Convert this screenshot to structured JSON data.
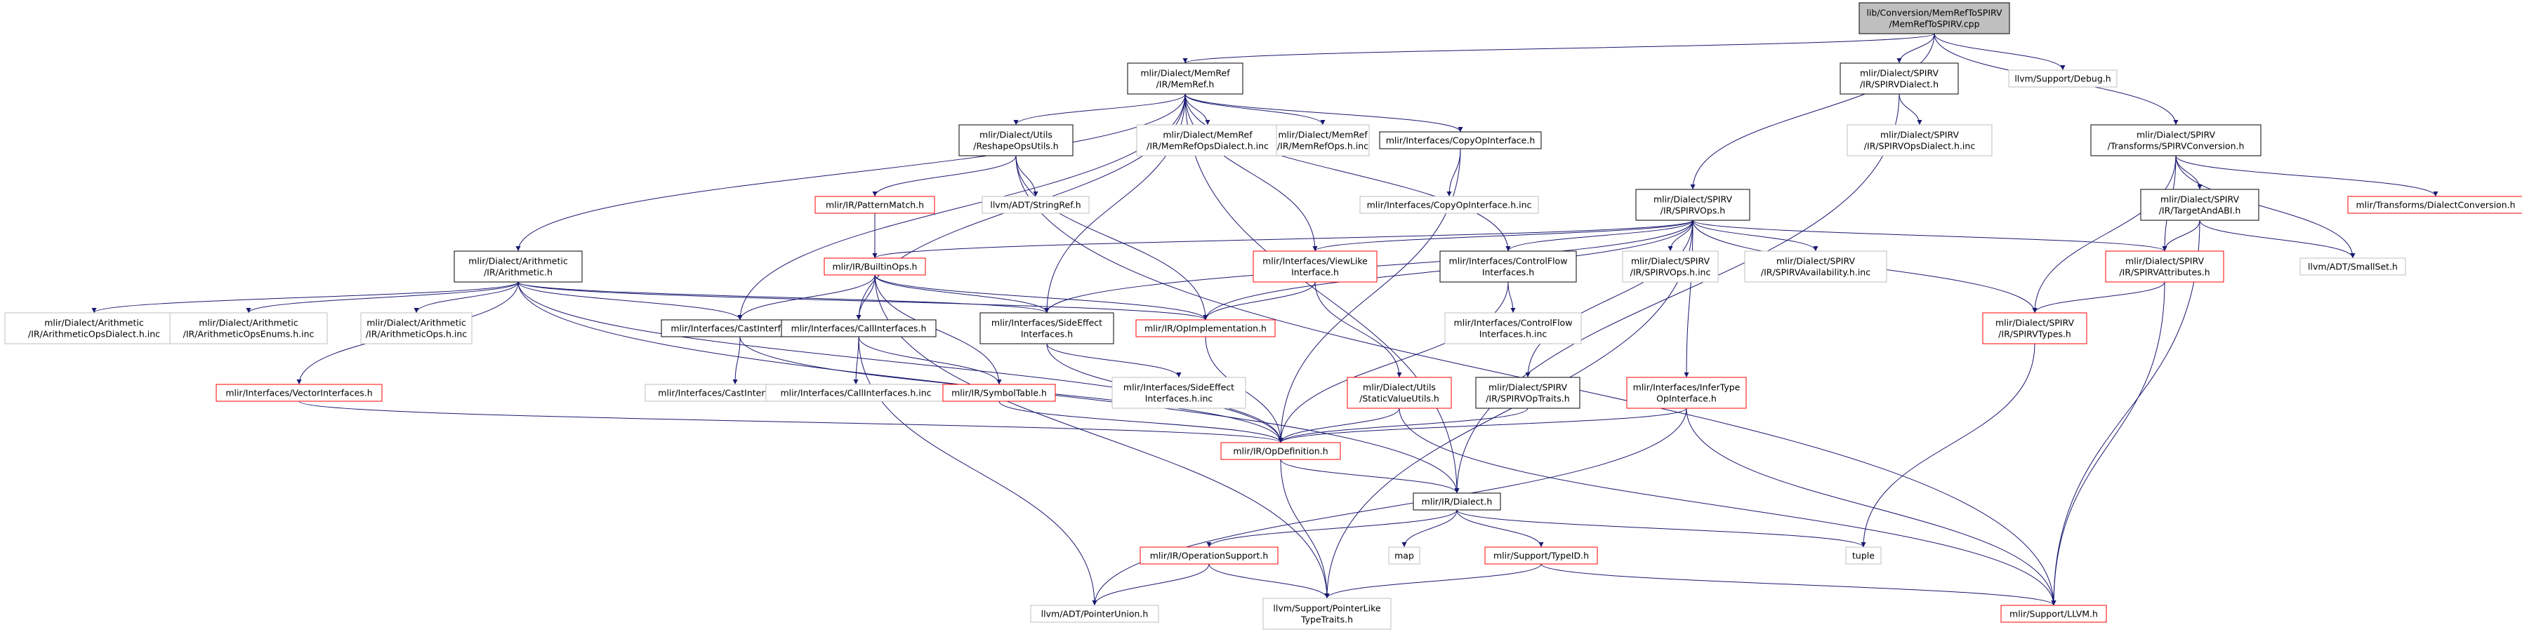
{
  "colors": {
    "edge": "#191970",
    "border_black": "#000000",
    "border_red": "#ff0000",
    "border_gray": "#bfbfbf",
    "root_fill": "#bfbfbf",
    "text": "#000000"
  },
  "nodes": [
    {
      "id": "root",
      "lines": [
        "lib/Conversion/MemRefToSPIRV",
        "/MemRefToSPIRV.cpp"
      ],
      "style": "root"
    },
    {
      "id": "memref",
      "lines": [
        "mlir/Dialect/MemRef",
        "/IR/MemRef.h"
      ],
      "style": "black"
    },
    {
      "id": "spirvdialect",
      "lines": [
        "mlir/Dialect/SPIRV",
        "/IR/SPIRVDialect.h"
      ],
      "style": "black"
    },
    {
      "id": "debug",
      "lines": [
        "llvm/Support/Debug.h"
      ],
      "style": "gray"
    },
    {
      "id": "spirvconv",
      "lines": [
        "mlir/Dialect/SPIRV",
        "/Transforms/SPIRVConversion.h"
      ],
      "style": "black"
    },
    {
      "id": "reshapeops",
      "lines": [
        "mlir/Dialect/Utils",
        "/ReshapeOpsUtils.h"
      ],
      "style": "black"
    },
    {
      "id": "memrefopsdialect",
      "lines": [
        "mlir/Dialect/MemRef",
        "/IR/MemRefOpsDialect.h.inc"
      ],
      "style": "gray"
    },
    {
      "id": "memrefops",
      "lines": [
        "mlir/Dialect/MemRef",
        "/IR/MemRefOps.h.inc"
      ],
      "style": "gray"
    },
    {
      "id": "copyop",
      "lines": [
        "mlir/Interfaces/CopyOpInterface.h"
      ],
      "style": "black"
    },
    {
      "id": "spirvopsdialect",
      "lines": [
        "mlir/Dialect/SPIRV",
        "/IR/SPIRVOpsDialect.h.inc"
      ],
      "style": "gray"
    },
    {
      "id": "targetabi",
      "lines": [
        "mlir/Dialect/SPIRV",
        "/IR/TargetAndABI.h"
      ],
      "style": "black"
    },
    {
      "id": "dialectconv",
      "lines": [
        "mlir/Transforms/DialectConversion.h"
      ],
      "style": "red"
    },
    {
      "id": "patternmatch",
      "lines": [
        "mlir/IR/PatternMatch.h"
      ],
      "style": "red"
    },
    {
      "id": "stringref",
      "lines": [
        "llvm/ADT/StringRef.h"
      ],
      "style": "gray"
    },
    {
      "id": "copyopinc",
      "lines": [
        "mlir/Interfaces/CopyOpInterface.h.inc"
      ],
      "style": "gray"
    },
    {
      "id": "spirvops",
      "lines": [
        "mlir/Dialect/SPIRV",
        "/IR/SPIRVOps.h"
      ],
      "style": "black"
    },
    {
      "id": "arith",
      "lines": [
        "mlir/Dialect/Arithmetic",
        "/IR/Arithmetic.h"
      ],
      "style": "black"
    },
    {
      "id": "builtinops",
      "lines": [
        "mlir/IR/BuiltinOps.h"
      ],
      "style": "red"
    },
    {
      "id": "viewlike",
      "lines": [
        "mlir/Interfaces/ViewLike",
        "Interface.h"
      ],
      "style": "red"
    },
    {
      "id": "controlflow",
      "lines": [
        "mlir/Interfaces/ControlFlow",
        "Interfaces.h"
      ],
      "style": "black"
    },
    {
      "id": "spirvopsinc",
      "lines": [
        "mlir/Dialect/SPIRV",
        "/IR/SPIRVOps.h.inc"
      ],
      "style": "gray"
    },
    {
      "id": "spirvavail",
      "lines": [
        "mlir/Dialect/SPIRV",
        "/IR/SPIRVAvailability.h.inc"
      ],
      "style": "gray"
    },
    {
      "id": "spirvattrs",
      "lines": [
        "mlir/Dialect/SPIRV",
        "/IR/SPIRVAttributes.h"
      ],
      "style": "red"
    },
    {
      "id": "smallset",
      "lines": [
        "llvm/ADT/SmallSet.h"
      ],
      "style": "gray"
    },
    {
      "id": "arithdialect",
      "lines": [
        "mlir/Dialect/Arithmetic",
        "/IR/ArithmeticOpsDialect.h.inc"
      ],
      "style": "gray"
    },
    {
      "id": "arithenums",
      "lines": [
        "mlir/Dialect/Arithmetic",
        "/IR/ArithmeticOpsEnums.h.inc"
      ],
      "style": "gray"
    },
    {
      "id": "arithops",
      "lines": [
        "mlir/Dialect/Arithmetic",
        "/IR/ArithmeticOps.h.inc"
      ],
      "style": "gray"
    },
    {
      "id": "castif",
      "lines": [
        "mlir/Interfaces/CastInterfaces.h"
      ],
      "style": "black"
    },
    {
      "id": "callif",
      "lines": [
        "mlir/Interfaces/CallInterfaces.h"
      ],
      "style": "black"
    },
    {
      "id": "sideeffect",
      "lines": [
        "mlir/Interfaces/SideEffect",
        "Interfaces.h"
      ],
      "style": "black"
    },
    {
      "id": "opimpl",
      "lines": [
        "mlir/IR/OpImplementation.h"
      ],
      "style": "red"
    },
    {
      "id": "controlflowinc",
      "lines": [
        "mlir/Interfaces/ControlFlow",
        "Interfaces.h.inc"
      ],
      "style": "gray"
    },
    {
      "id": "spirvtypes",
      "lines": [
        "mlir/Dialect/SPIRV",
        "/IR/SPIRVTypes.h"
      ],
      "style": "red"
    },
    {
      "id": "vectorif",
      "lines": [
        "mlir/Interfaces/VectorInterfaces.h"
      ],
      "style": "red"
    },
    {
      "id": "castifinc",
      "lines": [
        "mlir/Interfaces/CastInterfaces.h.inc"
      ],
      "style": "gray"
    },
    {
      "id": "callifinc",
      "lines": [
        "mlir/Interfaces/CallInterfaces.h.inc"
      ],
      "style": "gray"
    },
    {
      "id": "symboltable",
      "lines": [
        "mlir/IR/SymbolTable.h"
      ],
      "style": "red"
    },
    {
      "id": "sideeffectinc",
      "lines": [
        "mlir/Interfaces/SideEffect",
        "Interfaces.h.inc"
      ],
      "style": "gray"
    },
    {
      "id": "staticvalue",
      "lines": [
        "mlir/Dialect/Utils",
        "/StaticValueUtils.h"
      ],
      "style": "red"
    },
    {
      "id": "spirvoptraits",
      "lines": [
        "mlir/Dialect/SPIRV",
        "/IR/SPIRVOpTraits.h"
      ],
      "style": "black"
    },
    {
      "id": "infertype",
      "lines": [
        "mlir/Interfaces/InferType",
        "OpInterface.h"
      ],
      "style": "red"
    },
    {
      "id": "opdef",
      "lines": [
        "mlir/IR/OpDefinition.h"
      ],
      "style": "red"
    },
    {
      "id": "dialect",
      "lines": [
        "mlir/IR/Dialect.h"
      ],
      "style": "black"
    },
    {
      "id": "opsupport",
      "lines": [
        "mlir/IR/OperationSupport.h"
      ],
      "style": "red"
    },
    {
      "id": "map",
      "lines": [
        "map"
      ],
      "style": "gray"
    },
    {
      "id": "typeid",
      "lines": [
        "mlir/Support/TypeID.h"
      ],
      "style": "red"
    },
    {
      "id": "tuple",
      "lines": [
        "tuple"
      ],
      "style": "gray"
    },
    {
      "id": "pointerunion",
      "lines": [
        "llvm/ADT/PointerUnion.h"
      ],
      "style": "gray"
    },
    {
      "id": "pointerlike",
      "lines": [
        "llvm/Support/PointerLike",
        "TypeTraits.h"
      ],
      "style": "gray"
    },
    {
      "id": "llvmh",
      "lines": [
        "mlir/Support/LLVM.h"
      ],
      "style": "red"
    }
  ],
  "edges": [
    [
      "root",
      "memref"
    ],
    [
      "root",
      "spirvdialect"
    ],
    [
      "root",
      "debug"
    ],
    [
      "root",
      "spirvconv"
    ],
    [
      "root",
      "spirvops"
    ],
    [
      "memref",
      "reshapeops"
    ],
    [
      "memref",
      "memrefopsdialect"
    ],
    [
      "memref",
      "memrefops"
    ],
    [
      "memref",
      "copyop"
    ],
    [
      "memref",
      "arith"
    ],
    [
      "memref",
      "castif"
    ],
    [
      "memref",
      "callif"
    ],
    [
      "memref",
      "sideeffect"
    ],
    [
      "memref",
      "viewlike"
    ],
    [
      "memref",
      "controlflow"
    ],
    [
      "memref",
      "dialect"
    ],
    [
      "spirvdialect",
      "spirvopsdialect"
    ],
    [
      "spirvdialect",
      "dialect"
    ],
    [
      "spirvconv",
      "targetabi"
    ],
    [
      "spirvconv",
      "dialectconv"
    ],
    [
      "spirvconv",
      "spirvattrs"
    ],
    [
      "spirvconv",
      "spirvtypes"
    ],
    [
      "spirvconv",
      "smallset"
    ],
    [
      "targetabi",
      "spirvattrs"
    ],
    [
      "targetabi",
      "smallset"
    ],
    [
      "targetabi",
      "llvmh"
    ],
    [
      "reshapeops",
      "patternmatch"
    ],
    [
      "reshapeops",
      "stringref"
    ],
    [
      "reshapeops",
      "opimpl"
    ],
    [
      "reshapeops",
      "llvmh"
    ],
    [
      "patternmatch",
      "builtinops"
    ],
    [
      "copyop",
      "copyopinc"
    ],
    [
      "copyop",
      "opdef"
    ],
    [
      "spirvops",
      "builtinops"
    ],
    [
      "spirvops",
      "viewlike"
    ],
    [
      "spirvops",
      "controlflow"
    ],
    [
      "spirvops",
      "spirvopsinc"
    ],
    [
      "spirvops",
      "spirvavail"
    ],
    [
      "spirvops",
      "spirvattrs"
    ],
    [
      "spirvops",
      "spirvtypes"
    ],
    [
      "spirvops",
      "sideeffect"
    ],
    [
      "spirvops",
      "opimpl"
    ],
    [
      "spirvops",
      "infertype"
    ],
    [
      "spirvops",
      "spirvoptraits"
    ],
    [
      "spirvops",
      "pointerlike"
    ],
    [
      "arith",
      "arithdialect"
    ],
    [
      "arith",
      "arithenums"
    ],
    [
      "arith",
      "arithops"
    ],
    [
      "arith",
      "castif"
    ],
    [
      "arith",
      "vectorif"
    ],
    [
      "arith",
      "sideeffect"
    ],
    [
      "arith",
      "opimpl"
    ],
    [
      "arith",
      "opdef"
    ],
    [
      "arith",
      "dialect"
    ],
    [
      "builtinops",
      "castif"
    ],
    [
      "builtinops",
      "callif"
    ],
    [
      "builtinops",
      "sideeffect"
    ],
    [
      "builtinops",
      "opimpl"
    ],
    [
      "builtinops",
      "symboltable"
    ],
    [
      "builtinops",
      "pointerlike"
    ],
    [
      "viewlike",
      "opimpl"
    ],
    [
      "viewlike",
      "staticvalue"
    ],
    [
      "controlflow",
      "controlflowinc"
    ],
    [
      "controlflow",
      "opdef"
    ],
    [
      "spirvattrs",
      "spirvtypes"
    ],
    [
      "spirvattrs",
      "llvmh"
    ],
    [
      "spirvtypes",
      "tuple"
    ],
    [
      "castif",
      "castifinc"
    ],
    [
      "castif",
      "opdef"
    ],
    [
      "callif",
      "callifinc"
    ],
    [
      "callif",
      "symboltable"
    ],
    [
      "callif",
      "pointerunion"
    ],
    [
      "sideeffect",
      "sideeffectinc"
    ],
    [
      "sideeffect",
      "opdef"
    ],
    [
      "opimpl",
      "opdef"
    ],
    [
      "vectorif",
      "opdef"
    ],
    [
      "symboltable",
      "opdef"
    ],
    [
      "staticvalue",
      "opdef"
    ],
    [
      "staticvalue",
      "llvmh"
    ],
    [
      "spirvoptraits",
      "opdef"
    ],
    [
      "infertype",
      "opdef"
    ],
    [
      "infertype",
      "pointerunion"
    ],
    [
      "infertype",
      "llvmh"
    ],
    [
      "opdef",
      "dialect"
    ],
    [
      "opdef",
      "pointerlike"
    ],
    [
      "dialect",
      "opsupport"
    ],
    [
      "dialect",
      "map"
    ],
    [
      "dialect",
      "typeid"
    ],
    [
      "dialect",
      "tuple"
    ],
    [
      "opsupport",
      "pointerunion"
    ],
    [
      "opsupport",
      "pointerlike"
    ],
    [
      "typeid",
      "pointerlike"
    ],
    [
      "typeid",
      "llvmh"
    ]
  ]
}
